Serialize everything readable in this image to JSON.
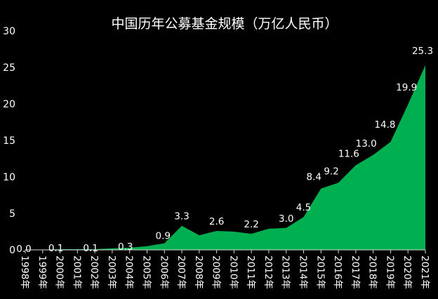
{
  "chart_data": {
    "type": "area",
    "title": "中国历年公募基金规模（万亿人民币）",
    "xlabel": "",
    "ylabel": "",
    "categories": [
      "1998年",
      "1999年",
      "2000年",
      "2001年",
      "2002年",
      "2003年",
      "2004年",
      "2005年",
      "2006年",
      "2007年",
      "2008年",
      "2009年",
      "2010年",
      "2011年",
      "2012年",
      "2013年",
      "2014年",
      "2015年",
      "2016年",
      "2017年",
      "2018年",
      "2019年",
      "2020年",
      "2021年"
    ],
    "values": [
      0.0,
      0.05,
      0.1,
      0.1,
      0.1,
      0.2,
      0.3,
      0.5,
      0.9,
      3.3,
      2.0,
      2.6,
      2.5,
      2.2,
      2.9,
      3.0,
      4.5,
      8.4,
      9.2,
      11.6,
      13.0,
      14.8,
      19.9,
      25.3
    ],
    "data_labels": [
      {
        "index": 0,
        "text": "0.0"
      },
      {
        "index": 2,
        "text": "0.1"
      },
      {
        "index": 4,
        "text": "0.1"
      },
      {
        "index": 6,
        "text": "0.3"
      },
      {
        "index": 8,
        "text": "0.9"
      },
      {
        "index": 9,
        "text": "3.3"
      },
      {
        "index": 11,
        "text": "2.6"
      },
      {
        "index": 13,
        "text": "2.2"
      },
      {
        "index": 15,
        "text": "3.0"
      },
      {
        "index": 16,
        "text": "4.5"
      },
      {
        "index": 17,
        "text": "8.4"
      },
      {
        "index": 18,
        "text": "9.2"
      },
      {
        "index": 19,
        "text": "11.6"
      },
      {
        "index": 20,
        "text": "13.0"
      },
      {
        "index": 21,
        "text": "14.8"
      },
      {
        "index": 22,
        "text": "19.9"
      },
      {
        "index": 23,
        "text": "25.3"
      }
    ],
    "yticks": [
      "0",
      "5",
      "10",
      "15",
      "20",
      "25",
      "30"
    ],
    "ylim": [
      0,
      30
    ],
    "grid": false,
    "colors": {
      "background": "#000000",
      "area": "#00b050",
      "text": "#ffffff",
      "axis": "#d9d9d9"
    }
  }
}
